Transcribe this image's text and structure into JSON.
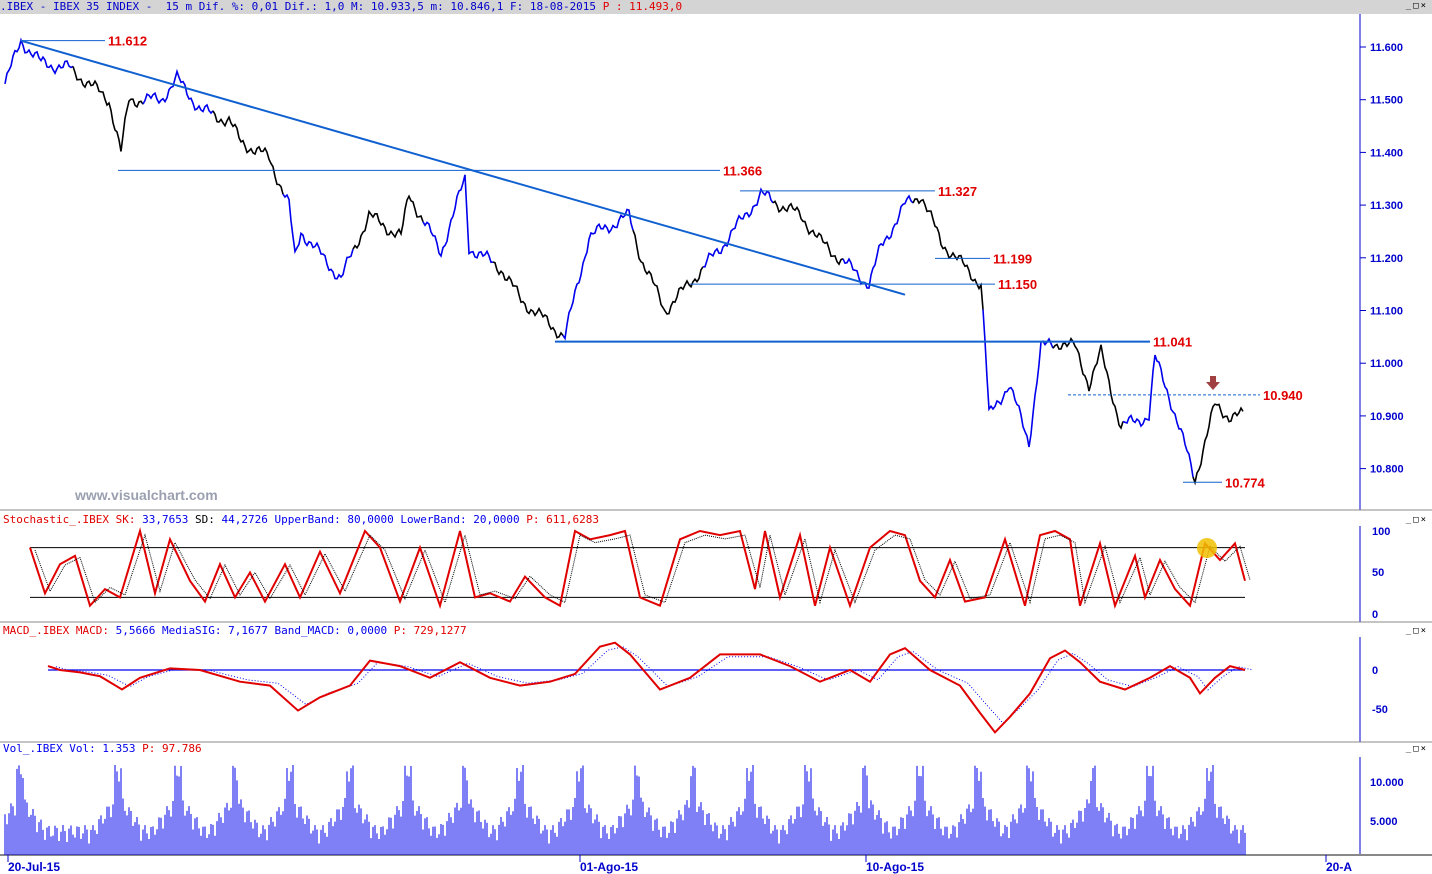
{
  "header": {
    "symbol": ".IBEX - IBEX 35 INDEX - ",
    "interval": "15 m",
    "stats": " Dif. %: 0,01 Dif.: 1,0 M: 10.933,5 m: 10.846,1 F: 18-08-2015 ",
    "p": "P : 11.493,0"
  },
  "watermark": "www.visualchart.com",
  "stoch_title": {
    "name": "Stochastic_.IBEX SK:",
    "sk": " 33,7653",
    "sd_label": " SD:",
    "rest": " 44,2726 UpperBand: 80,0000 LowerBand: 20,0000",
    "p": " P: 611,6283"
  },
  "macd_title": {
    "name": "MACD_.IBEX MACD:",
    "rest": " 5,5666 MediaSIG: 7,1677 Band_MACD: 0,0000",
    "p": " P: 729,1277"
  },
  "vol_title": {
    "name": "Vol_.IBEX Vol: 1.353",
    "p": " P: 97.786"
  },
  "window_buttons": "_□×",
  "chart_data": [
    {
      "type": "line",
      "title": "IBEX 35 INDEX 15 m",
      "yticks": [
        "11.600",
        "11.500",
        "11.400",
        "11.300",
        "11.200",
        "11.100",
        "11.000",
        "10.900",
        "10.800"
      ],
      "ylim": [
        10720,
        11660
      ],
      "xticks": [
        "20-Jul-15",
        "01-Ago-15",
        "10-Ago-15",
        "20-A"
      ],
      "close": [
        [
          0,
          11530
        ],
        [
          8,
          11612
        ],
        [
          18,
          11570
        ],
        [
          32,
          11560
        ],
        [
          52,
          11500
        ],
        [
          58,
          11400
        ],
        [
          62,
          11500
        ],
        [
          78,
          11500
        ],
        [
          86,
          11540
        ],
        [
          98,
          11480
        ],
        [
          112,
          11460
        ],
        [
          118,
          11420
        ],
        [
          132,
          11390
        ],
        [
          142,
          11300
        ],
        [
          145,
          11200
        ],
        [
          148,
          11250
        ],
        [
          168,
          11160
        ],
        [
          182,
          11280
        ],
        [
          198,
          11240
        ],
        [
          202,
          11320
        ],
        [
          218,
          11210
        ],
        [
          230,
          11350
        ],
        [
          232,
          11220
        ],
        [
          248,
          11180
        ],
        [
          258,
          11120
        ],
        [
          280,
          11050
        ],
        [
          292,
          11240
        ],
        [
          312,
          11280
        ],
        [
          318,
          11200
        ],
        [
          330,
          11100
        ],
        [
          342,
          11150
        ],
        [
          358,
          11220
        ],
        [
          370,
          11280
        ],
        [
          378,
          11320
        ],
        [
          398,
          11280
        ],
        [
          408,
          11230
        ],
        [
          432,
          11150
        ],
        [
          438,
          11220
        ],
        [
          450,
          11300
        ],
        [
          458,
          11320
        ],
        [
          468,
          11230
        ],
        [
          488,
          11150
        ],
        [
          490,
          11040
        ],
        [
          492,
          10900
        ],
        [
          502,
          10960
        ],
        [
          512,
          10850
        ],
        [
          518,
          11030
        ],
        [
          528,
          11040
        ],
        [
          535,
          11030
        ],
        [
          542,
          10960
        ],
        [
          548,
          11020
        ],
        [
          558,
          10880
        ],
        [
          572,
          10900
        ],
        [
          575,
          11010
        ],
        [
          582,
          10940
        ],
        [
          595,
          10780
        ],
        [
          605,
          10920
        ],
        [
          612,
          10900
        ],
        [
          620,
          10900
        ]
      ],
      "levels": [
        {
          "label": "11.612",
          "value": 11612
        },
        {
          "label": "11.366",
          "value": 11366
        },
        {
          "label": "11.327",
          "value": 11327
        },
        {
          "label": "11.199",
          "value": 11199
        },
        {
          "label": "11.150",
          "value": 11150
        },
        {
          "label": "11.041",
          "value": 11041
        },
        {
          "label": "10.940",
          "value": 10940
        },
        {
          "label": "10.774",
          "value": 10774
        }
      ],
      "trendline": [
        [
          8,
          11612
        ],
        [
          450,
          11130
        ]
      ]
    },
    {
      "type": "line",
      "title": "Stochastic",
      "yticks": [
        "100",
        "50",
        "0"
      ],
      "bands": [
        80,
        20
      ],
      "sk": [
        [
          30,
          80
        ],
        [
          45,
          25
        ],
        [
          60,
          60
        ],
        [
          75,
          70
        ],
        [
          90,
          10
        ],
        [
          105,
          30
        ],
        [
          120,
          20
        ],
        [
          140,
          100
        ],
        [
          155,
          25
        ],
        [
          170,
          90
        ],
        [
          190,
          40
        ],
        [
          205,
          15
        ],
        [
          220,
          60
        ],
        [
          235,
          20
        ],
        [
          250,
          50
        ],
        [
          265,
          15
        ],
        [
          285,
          60
        ],
        [
          300,
          20
        ],
        [
          320,
          75
        ],
        [
          340,
          25
        ],
        [
          365,
          100
        ],
        [
          380,
          80
        ],
        [
          400,
          15
        ],
        [
          420,
          80
        ],
        [
          440,
          10
        ],
        [
          460,
          100
        ],
        [
          475,
          20
        ],
        [
          490,
          25
        ],
        [
          510,
          15
        ],
        [
          525,
          45
        ],
        [
          545,
          20
        ],
        [
          560,
          10
        ],
        [
          575,
          100
        ],
        [
          590,
          90
        ],
        [
          610,
          95
        ],
        [
          625,
          100
        ],
        [
          640,
          20
        ],
        [
          660,
          10
        ],
        [
          680,
          90
        ],
        [
          700,
          100
        ],
        [
          720,
          95
        ],
        [
          740,
          100
        ],
        [
          755,
          30
        ],
        [
          765,
          100
        ],
        [
          780,
          20
        ],
        [
          800,
          95
        ],
        [
          815,
          10
        ],
        [
          830,
          80
        ],
        [
          850,
          10
        ],
        [
          870,
          80
        ],
        [
          890,
          100
        ],
        [
          905,
          95
        ],
        [
          920,
          40
        ],
        [
          935,
          20
        ],
        [
          950,
          65
        ],
        [
          965,
          15
        ],
        [
          985,
          20
        ],
        [
          1005,
          90
        ],
        [
          1025,
          10
        ],
        [
          1040,
          95
        ],
        [
          1055,
          100
        ],
        [
          1070,
          90
        ],
        [
          1080,
          10
        ],
        [
          1100,
          85
        ],
        [
          1115,
          10
        ],
        [
          1135,
          70
        ],
        [
          1145,
          20
        ],
        [
          1160,
          65
        ],
        [
          1175,
          30
        ],
        [
          1190,
          10
        ],
        [
          1205,
          85
        ],
        [
          1220,
          65
        ],
        [
          1235,
          85
        ],
        [
          1245,
          40
        ]
      ]
    },
    {
      "type": "line",
      "title": "MACD",
      "yticks": [
        "0",
        "-50"
      ],
      "macd": [
        [
          48,
          5
        ],
        [
          60,
          0
        ],
        [
          80,
          -3
        ],
        [
          100,
          -8
        ],
        [
          122,
          -25
        ],
        [
          140,
          -10
        ],
        [
          170,
          2
        ],
        [
          200,
          0
        ],
        [
          240,
          -15
        ],
        [
          270,
          -20
        ],
        [
          298,
          -52
        ],
        [
          320,
          -35
        ],
        [
          350,
          -20
        ],
        [
          370,
          12
        ],
        [
          400,
          5
        ],
        [
          430,
          -10
        ],
        [
          460,
          10
        ],
        [
          490,
          -10
        ],
        [
          520,
          -20
        ],
        [
          550,
          -15
        ],
        [
          575,
          -5
        ],
        [
          600,
          30
        ],
        [
          615,
          35
        ],
        [
          630,
          20
        ],
        [
          660,
          -25
        ],
        [
          690,
          -10
        ],
        [
          720,
          20
        ],
        [
          760,
          20
        ],
        [
          790,
          5
        ],
        [
          820,
          -15
        ],
        [
          850,
          0
        ],
        [
          870,
          -15
        ],
        [
          890,
          20
        ],
        [
          905,
          28
        ],
        [
          930,
          0
        ],
        [
          960,
          -20
        ],
        [
          980,
          -55
        ],
        [
          995,
          -80
        ],
        [
          1010,
          -60
        ],
        [
          1030,
          -30
        ],
        [
          1050,
          15
        ],
        [
          1065,
          25
        ],
        [
          1080,
          10
        ],
        [
          1100,
          -15
        ],
        [
          1125,
          -25
        ],
        [
          1150,
          -10
        ],
        [
          1170,
          5
        ],
        [
          1190,
          -10
        ],
        [
          1200,
          -30
        ],
        [
          1215,
          -10
        ],
        [
          1230,
          5
        ],
        [
          1245,
          0
        ]
      ]
    },
    {
      "type": "bar",
      "title": "Volume",
      "yticks": [
        "10.000",
        "5.000"
      ],
      "session_peaks": [
        20,
        118,
        178,
        235,
        290,
        350,
        408,
        465,
        520,
        580,
        637,
        693,
        750,
        808,
        865,
        920,
        978,
        1030,
        1093,
        1150,
        1210
      ]
    }
  ]
}
